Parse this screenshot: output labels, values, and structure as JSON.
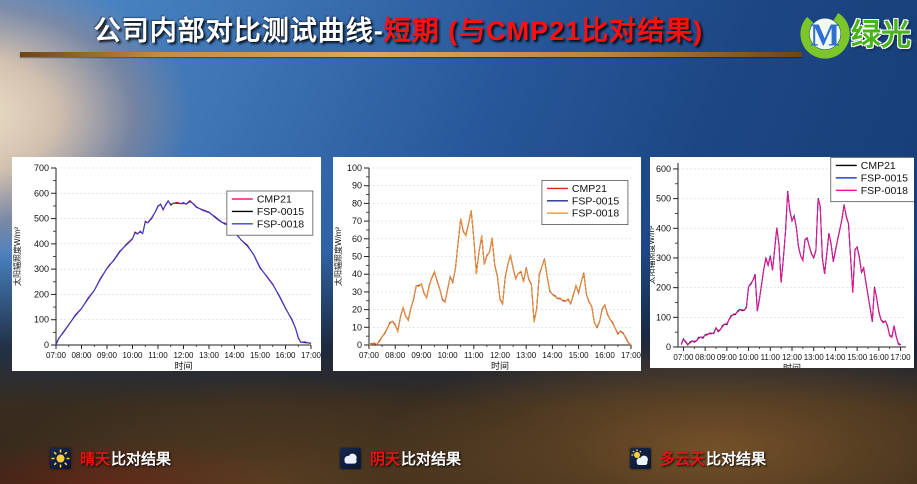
{
  "header": {
    "title_white": "公司内部对比测试曲线-",
    "title_red": "短期 (与CMP21比对结果)",
    "logo_letter": "M",
    "logo_text": "绿光",
    "logo_green": "#7cc629",
    "logo_blue": "#2d6fd2"
  },
  "footer": {
    "items": [
      {
        "icon": "sun-icon",
        "condition": "晴天",
        "suffix": "比对结果"
      },
      {
        "icon": "cloud-icon",
        "condition": "阴天",
        "suffix": "比对结果"
      },
      {
        "icon": "sun-cloud-icon",
        "condition": "多云天",
        "suffix": "比对结果"
      }
    ]
  },
  "chart_data": [
    {
      "type": "line",
      "title": "",
      "xlabel": "时间",
      "ylabel": "太阳辐照度W/m²",
      "xlim": [
        7,
        17
      ],
      "ylim": [
        0,
        700
      ],
      "ytick": 100,
      "x_tick_values": [
        7,
        8,
        9,
        10,
        11,
        12,
        13,
        14,
        15,
        16,
        17
      ],
      "x_tick_labels": [
        "07:00",
        "08:00",
        "09:00",
        "10:00",
        "11:00",
        "12:00",
        "13:00",
        "14:00",
        "15:00",
        "16:00",
        "17:00"
      ],
      "grid": "dashed-horizontal",
      "legend_pos": {
        "x": 0.67,
        "y": 0.13
      },
      "layout": {
        "ml": 44,
        "mr": 10,
        "mt": 11,
        "mb": 26,
        "ylabel_x": 8
      },
      "series": [
        {
          "name": "CMP21",
          "color": "#ee1878"
        },
        {
          "name": "FSP-0015",
          "color": "#000000"
        },
        {
          "name": "FSP-0018",
          "color": "#3a45d6"
        }
      ],
      "series_overlap": true,
      "x": [
        7,
        7.1,
        7.25,
        7.5,
        7.75,
        8,
        8.25,
        8.5,
        8.75,
        9,
        9.1,
        9.25,
        9.5,
        9.75,
        10,
        10.1,
        10.2,
        10.3,
        10.4,
        10.5,
        10.6,
        10.75,
        10.9,
        11,
        11.1,
        11.2,
        11.3,
        11.4,
        11.5,
        11.6,
        11.75,
        11.9,
        12,
        12.1,
        12.25,
        12.4,
        12.5,
        12.75,
        13,
        13.25,
        13.5,
        13.6,
        13.75,
        14,
        14.25,
        14.5,
        14.75,
        15,
        15.25,
        15.5,
        15.75,
        16,
        16.25,
        16.4,
        16.5,
        16.6,
        16.75,
        17
      ],
      "values": [
        3,
        20,
        45,
        85,
        115,
        140,
        185,
        220,
        260,
        300,
        320,
        335,
        365,
        395,
        425,
        445,
        435,
        450,
        445,
        485,
        480,
        505,
        530,
        545,
        555,
        540,
        555,
        565,
        555,
        565,
        560,
        555,
        565,
        560,
        565,
        555,
        550,
        535,
        520,
        505,
        490,
        480,
        470,
        450,
        420,
        390,
        355,
        310,
        275,
        235,
        195,
        150,
        100,
        60,
        30,
        15,
        8,
        3
      ]
    },
    {
      "type": "line",
      "title": "",
      "xlabel": "时间",
      "ylabel": "太阳辐照度W/m²",
      "xlim": [
        7,
        17
      ],
      "ylim": [
        0,
        100
      ],
      "ytick": 10,
      "x_tick_values": [
        7,
        8,
        9,
        10,
        11,
        12,
        13,
        14,
        15,
        16,
        17
      ],
      "x_tick_labels": [
        "07:00",
        "08:00",
        "09:00",
        "10:00",
        "11:00",
        "12:00",
        "13:00",
        "14:00",
        "15:00",
        "16:00",
        "17:00"
      ],
      "grid": "dashed-horizontal",
      "legend_pos": {
        "x": 0.66,
        "y": 0.07
      },
      "layout": {
        "ml": 36,
        "mr": 10,
        "mt": 11,
        "mb": 26,
        "ylabel_x": 8
      },
      "series": [
        {
          "name": "CMP21",
          "color": "#dd2222"
        },
        {
          "name": "FSP-0015",
          "color": "#1f2d8f"
        },
        {
          "name": "FSP-0018",
          "color": "#f79428"
        }
      ],
      "series_overlap": true,
      "x_start": 7.0,
      "x_step": 0.1,
      "values": [
        0,
        0,
        1,
        1,
        2,
        4,
        7,
        10,
        12,
        13,
        12,
        8,
        15,
        21,
        17,
        14,
        20,
        26,
        34,
        33,
        34,
        30,
        27,
        33,
        38,
        42,
        36,
        31,
        26,
        25,
        31,
        38,
        36,
        44,
        57,
        71,
        65,
        62,
        68,
        76,
        61,
        40,
        52,
        62,
        46,
        50,
        52,
        61,
        45,
        38,
        26,
        24,
        38,
        45,
        51,
        44,
        37,
        40,
        42,
        36,
        43,
        37,
        35,
        13,
        20,
        40,
        45,
        48,
        38,
        31,
        29,
        27,
        26,
        27,
        25,
        24,
        26,
        24,
        28,
        33,
        30,
        36,
        40,
        28,
        25,
        22,
        12,
        10,
        14,
        20,
        22,
        18,
        15,
        12,
        9,
        7,
        8,
        6,
        4,
        2,
        0
      ]
    },
    {
      "type": "line",
      "title": "",
      "xlabel": "时间",
      "ylabel": "太阳辐照度W/m²",
      "xlim": [
        6.75,
        17.25
      ],
      "ylim": [
        0,
        620
      ],
      "ytick": 100,
      "x_tick_values": [
        7,
        8,
        9,
        10,
        11,
        12,
        13,
        14,
        15,
        16,
        17
      ],
      "x_tick_labels": [
        "07:00",
        "08:00",
        "09:00",
        "10:00",
        "11:00",
        "12:00",
        "13:00",
        "14:00",
        "15:00",
        "16:00",
        "17:00"
      ],
      "grid": "dashed-horizontal",
      "legend_pos": {
        "x": 0.67,
        "y": -0.03
      },
      "layout": {
        "ml": 28,
        "mr": 8,
        "mt": 6,
        "mb": 21,
        "ylabel_x": 4
      },
      "series": [
        {
          "name": "CMP21",
          "color": "#000000"
        },
        {
          "name": "FSP-0015",
          "color": "#2a3ed8"
        },
        {
          "name": "FSP-0018",
          "color": "#f5118d"
        }
      ],
      "series_overlap": true,
      "x_start": 6.9,
      "x_step": 0.1,
      "values": [
        10,
        22,
        18,
        12,
        14,
        16,
        20,
        24,
        28,
        30,
        35,
        42,
        38,
        45,
        50,
        46,
        60,
        55,
        62,
        68,
        74,
        80,
        95,
        100,
        108,
        115,
        120,
        122,
        125,
        128,
        132,
        200,
        215,
        228,
        240,
        120,
        165,
        212,
        258,
        300,
        280,
        305,
        255,
        330,
        405,
        340,
        215,
        300,
        390,
        520,
        460,
        430,
        440,
        400,
        340,
        310,
        290,
        360,
        370,
        340,
        310,
        300,
        330,
        500,
        470,
        300,
        250,
        310,
        380,
        350,
        290,
        320,
        360,
        400,
        430,
        475,
        440,
        420,
        300,
        180,
        330,
        340,
        300,
        250,
        270,
        220,
        170,
        130,
        90,
        200,
        160,
        120,
        95,
        80,
        85,
        75,
        40,
        30,
        70,
        40,
        10,
        3
      ]
    }
  ]
}
